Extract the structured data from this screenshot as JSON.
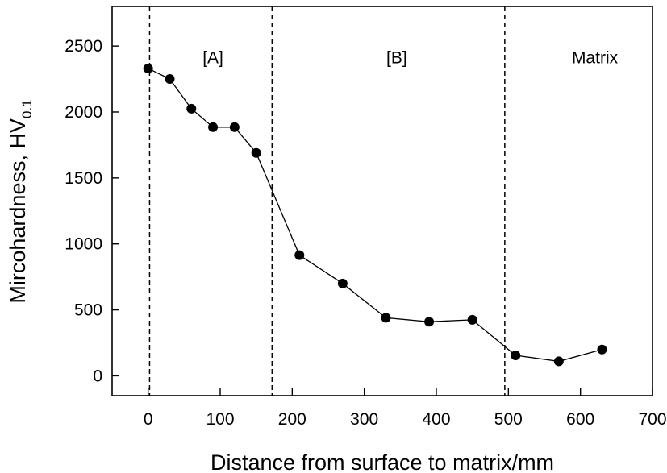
{
  "chart_data": {
    "type": "scatter",
    "xlabel": "Distance from surface to matrix/mm",
    "ylabel": "Mircohardness, HV",
    "ylabel_subscript": "0.1",
    "xlim": [
      -50,
      700
    ],
    "ylim": [
      -150,
      2800
    ],
    "xticks": [
      "0",
      "100",
      "200",
      "300",
      "400",
      "500",
      "600",
      "700"
    ],
    "yticks": [
      "0",
      "500",
      "1000",
      "1500",
      "2000",
      "2500"
    ],
    "grid": false,
    "series": [
      {
        "style": "line-with-markers",
        "color": "#000000",
        "x": [
          0,
          30,
          60,
          90,
          120,
          150,
          210,
          270,
          330,
          390,
          450,
          510,
          570,
          630
        ],
        "y": [
          2330,
          2250,
          2025,
          1885,
          1885,
          1690,
          915,
          700,
          440,
          410,
          425,
          155,
          110,
          200
        ]
      }
    ],
    "boundaries": [
      {
        "x": 2,
        "style": "dashed"
      },
      {
        "x": 172,
        "style": "dashed"
      },
      {
        "x": 495,
        "style": "dashed"
      }
    ],
    "region_labels": [
      {
        "text": "[A]",
        "x": 90,
        "y": 2370
      },
      {
        "text": "[B]",
        "x": 345,
        "y": 2370
      },
      {
        "text": "Matrix",
        "x": 620,
        "y": 2370
      }
    ]
  }
}
